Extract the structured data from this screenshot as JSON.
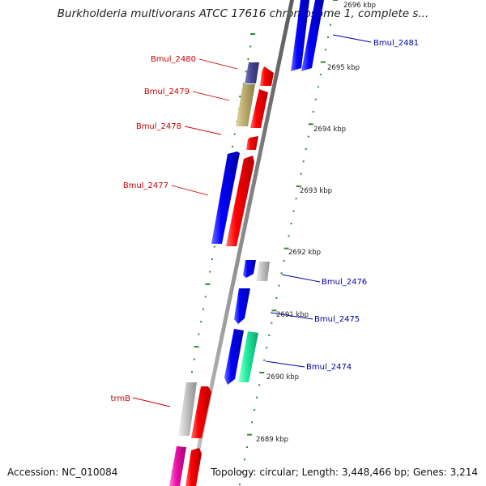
{
  "title": "Burkholderia multivorans ATCC 17616 chromosome 1, complete s...",
  "accession": "Accession: NC_010084",
  "topology": "Topology: circular; Length: 3,448,466 bp; Genes: 3,214",
  "colors": {
    "backbone": "#8c8c8c",
    "kbp_dots": "#2e8b2e",
    "label_red": "#cc0000",
    "label_blue": "#0000aa",
    "red": "#ff0000",
    "blue": "#0000ff",
    "navy": "#4a4a9a",
    "khaki": "#c0b070",
    "gray": "#c8c8c8",
    "mint": "#22f0a0",
    "magenta": "#ee11aa"
  },
  "kbp_ticks": [
    "2696 kbp",
    "2695 kbp",
    "2694 kbp",
    "2693 kbp",
    "2692 kbp",
    "2691 kbp",
    "2690 kbp",
    "2689 kbp"
  ],
  "labeled_genes": [
    {
      "name": "Bmul_2481",
      "side": "right",
      "color": "label_blue"
    },
    {
      "name": "Bmul_2480",
      "side": "left",
      "color": "label_red"
    },
    {
      "name": "Bmul_2479",
      "side": "left",
      "color": "label_red"
    },
    {
      "name": "Bmul_2478",
      "side": "left",
      "color": "label_red"
    },
    {
      "name": "Bmul_2477",
      "side": "left",
      "color": "label_red"
    },
    {
      "name": "Bmul_2476",
      "side": "right",
      "color": "label_blue"
    },
    {
      "name": "Bmul_2475",
      "side": "right",
      "color": "label_blue"
    },
    {
      "name": "Bmul_2474",
      "side": "right",
      "color": "label_blue"
    },
    {
      "name": "trmB",
      "side": "left",
      "color": "label_red"
    }
  ]
}
